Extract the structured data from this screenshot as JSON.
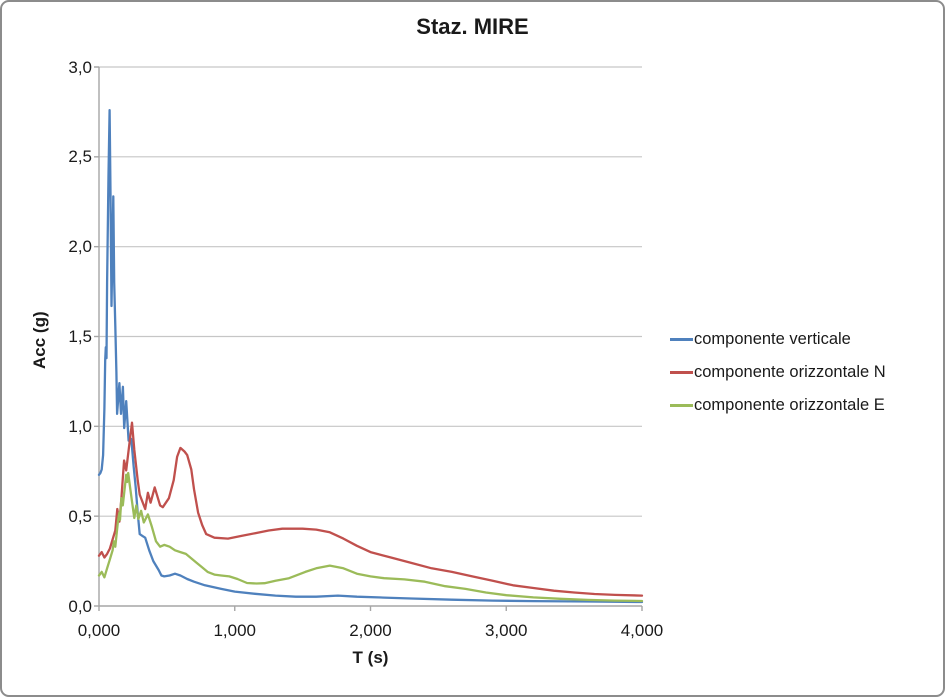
{
  "chart_data": {
    "type": "line",
    "title": "Staz. MIRE",
    "xlabel": "T (s)",
    "ylabel": "Acc (g)",
    "xlim": [
      0,
      4
    ],
    "ylim": [
      0,
      3
    ],
    "x_ticks": [
      0,
      1,
      2,
      3,
      4
    ],
    "x_tick_labels": [
      "0,000",
      "1,000",
      "2,000",
      "3,000",
      "4,000"
    ],
    "y_ticks": [
      0,
      0.5,
      1,
      1.5,
      2,
      2.5,
      3
    ],
    "y_tick_labels": [
      "0,0",
      "0,5",
      "1,0",
      "1,5",
      "2,0",
      "2,5",
      "3,0"
    ],
    "grid": "horizontal",
    "grid_color": "#c6c6c6",
    "axis_color": "#a6a6a6",
    "legend_position": "right",
    "series": [
      {
        "name": "componente verticale",
        "color": "#4F81BD",
        "points": [
          [
            0.0,
            0.73
          ],
          [
            0.01,
            0.74
          ],
          [
            0.02,
            0.76
          ],
          [
            0.03,
            0.84
          ],
          [
            0.04,
            1.1
          ],
          [
            0.046,
            1.37
          ],
          [
            0.05,
            1.44
          ],
          [
            0.055,
            1.38
          ],
          [
            0.06,
            1.8
          ],
          [
            0.07,
            2.4
          ],
          [
            0.078,
            2.76
          ],
          [
            0.085,
            2.3
          ],
          [
            0.092,
            1.67
          ],
          [
            0.1,
            2.05
          ],
          [
            0.105,
            2.28
          ],
          [
            0.112,
            1.8
          ],
          [
            0.12,
            1.56
          ],
          [
            0.128,
            1.3
          ],
          [
            0.133,
            1.07
          ],
          [
            0.15,
            1.24
          ],
          [
            0.162,
            1.07
          ],
          [
            0.176,
            1.22
          ],
          [
            0.186,
            0.99
          ],
          [
            0.2,
            1.14
          ],
          [
            0.218,
            0.92
          ],
          [
            0.238,
            0.93
          ],
          [
            0.255,
            0.78
          ],
          [
            0.27,
            0.66
          ],
          [
            0.285,
            0.52
          ],
          [
            0.3,
            0.4
          ],
          [
            0.32,
            0.39
          ],
          [
            0.34,
            0.38
          ],
          [
            0.37,
            0.31
          ],
          [
            0.4,
            0.25
          ],
          [
            0.44,
            0.2
          ],
          [
            0.46,
            0.17
          ],
          [
            0.48,
            0.165
          ],
          [
            0.52,
            0.17
          ],
          [
            0.56,
            0.18
          ],
          [
            0.6,
            0.17
          ],
          [
            0.65,
            0.15
          ],
          [
            0.7,
            0.135
          ],
          [
            0.78,
            0.115
          ],
          [
            0.9,
            0.095
          ],
          [
            1.0,
            0.08
          ],
          [
            1.15,
            0.068
          ],
          [
            1.3,
            0.058
          ],
          [
            1.45,
            0.052
          ],
          [
            1.6,
            0.052
          ],
          [
            1.76,
            0.058
          ],
          [
            1.9,
            0.052
          ],
          [
            2.1,
            0.047
          ],
          [
            2.3,
            0.042
          ],
          [
            2.6,
            0.035
          ],
          [
            2.9,
            0.03
          ],
          [
            3.2,
            0.027
          ],
          [
            3.6,
            0.025
          ],
          [
            4.0,
            0.022
          ]
        ]
      },
      {
        "name": "componente orizzontale N",
        "color": "#C0504D",
        "points": [
          [
            0.0,
            0.28
          ],
          [
            0.02,
            0.3
          ],
          [
            0.04,
            0.27
          ],
          [
            0.06,
            0.29
          ],
          [
            0.08,
            0.32
          ],
          [
            0.1,
            0.37
          ],
          [
            0.12,
            0.42
          ],
          [
            0.135,
            0.54
          ],
          [
            0.15,
            0.47
          ],
          [
            0.165,
            0.6
          ],
          [
            0.175,
            0.71
          ],
          [
            0.185,
            0.81
          ],
          [
            0.2,
            0.755
          ],
          [
            0.22,
            0.88
          ],
          [
            0.243,
            1.02
          ],
          [
            0.26,
            0.87
          ],
          [
            0.285,
            0.7
          ],
          [
            0.3,
            0.62
          ],
          [
            0.34,
            0.54
          ],
          [
            0.36,
            0.63
          ],
          [
            0.38,
            0.575
          ],
          [
            0.41,
            0.66
          ],
          [
            0.45,
            0.56
          ],
          [
            0.47,
            0.55
          ],
          [
            0.515,
            0.6
          ],
          [
            0.55,
            0.7
          ],
          [
            0.575,
            0.83
          ],
          [
            0.6,
            0.88
          ],
          [
            0.63,
            0.86
          ],
          [
            0.65,
            0.84
          ],
          [
            0.68,
            0.76
          ],
          [
            0.7,
            0.65
          ],
          [
            0.73,
            0.52
          ],
          [
            0.76,
            0.45
          ],
          [
            0.79,
            0.4
          ],
          [
            0.85,
            0.38
          ],
          [
            0.95,
            0.375
          ],
          [
            1.05,
            0.39
          ],
          [
            1.15,
            0.405
          ],
          [
            1.25,
            0.42
          ],
          [
            1.35,
            0.43
          ],
          [
            1.5,
            0.43
          ],
          [
            1.6,
            0.425
          ],
          [
            1.7,
            0.41
          ],
          [
            1.8,
            0.375
          ],
          [
            1.9,
            0.335
          ],
          [
            2.0,
            0.3
          ],
          [
            2.15,
            0.27
          ],
          [
            2.3,
            0.24
          ],
          [
            2.45,
            0.21
          ],
          [
            2.6,
            0.19
          ],
          [
            2.75,
            0.165
          ],
          [
            2.9,
            0.14
          ],
          [
            3.05,
            0.115
          ],
          [
            3.2,
            0.1
          ],
          [
            3.35,
            0.085
          ],
          [
            3.5,
            0.075
          ],
          [
            3.65,
            0.067
          ],
          [
            3.8,
            0.062
          ],
          [
            4.0,
            0.058
          ]
        ]
      },
      {
        "name": "componente orizzontale E",
        "color": "#9BBB59",
        "points": [
          [
            0.0,
            0.17
          ],
          [
            0.02,
            0.19
          ],
          [
            0.04,
            0.16
          ],
          [
            0.06,
            0.21
          ],
          [
            0.08,
            0.26
          ],
          [
            0.1,
            0.31
          ],
          [
            0.11,
            0.36
          ],
          [
            0.12,
            0.33
          ],
          [
            0.14,
            0.475
          ],
          [
            0.15,
            0.52
          ],
          [
            0.155,
            0.48
          ],
          [
            0.165,
            0.6
          ],
          [
            0.175,
            0.56
          ],
          [
            0.19,
            0.66
          ],
          [
            0.2,
            0.73
          ],
          [
            0.207,
            0.69
          ],
          [
            0.215,
            0.74
          ],
          [
            0.23,
            0.655
          ],
          [
            0.245,
            0.57
          ],
          [
            0.26,
            0.49
          ],
          [
            0.275,
            0.56
          ],
          [
            0.29,
            0.485
          ],
          [
            0.31,
            0.53
          ],
          [
            0.33,
            0.465
          ],
          [
            0.36,
            0.51
          ],
          [
            0.39,
            0.44
          ],
          [
            0.42,
            0.36
          ],
          [
            0.45,
            0.33
          ],
          [
            0.48,
            0.34
          ],
          [
            0.52,
            0.33
          ],
          [
            0.56,
            0.31
          ],
          [
            0.6,
            0.3
          ],
          [
            0.64,
            0.29
          ],
          [
            0.68,
            0.265
          ],
          [
            0.72,
            0.24
          ],
          [
            0.76,
            0.215
          ],
          [
            0.8,
            0.19
          ],
          [
            0.85,
            0.175
          ],
          [
            0.9,
            0.17
          ],
          [
            0.96,
            0.165
          ],
          [
            1.02,
            0.15
          ],
          [
            1.09,
            0.128
          ],
          [
            1.16,
            0.125
          ],
          [
            1.22,
            0.127
          ],
          [
            1.3,
            0.14
          ],
          [
            1.4,
            0.155
          ],
          [
            1.52,
            0.19
          ],
          [
            1.6,
            0.21
          ],
          [
            1.7,
            0.225
          ],
          [
            1.8,
            0.21
          ],
          [
            1.9,
            0.18
          ],
          [
            2.0,
            0.165
          ],
          [
            2.1,
            0.155
          ],
          [
            2.25,
            0.148
          ],
          [
            2.4,
            0.135
          ],
          [
            2.55,
            0.11
          ],
          [
            2.7,
            0.095
          ],
          [
            2.85,
            0.075
          ],
          [
            3.0,
            0.06
          ],
          [
            3.2,
            0.048
          ],
          [
            3.4,
            0.04
          ],
          [
            3.6,
            0.034
          ],
          [
            3.8,
            0.03
          ],
          [
            4.0,
            0.028
          ]
        ]
      }
    ]
  }
}
